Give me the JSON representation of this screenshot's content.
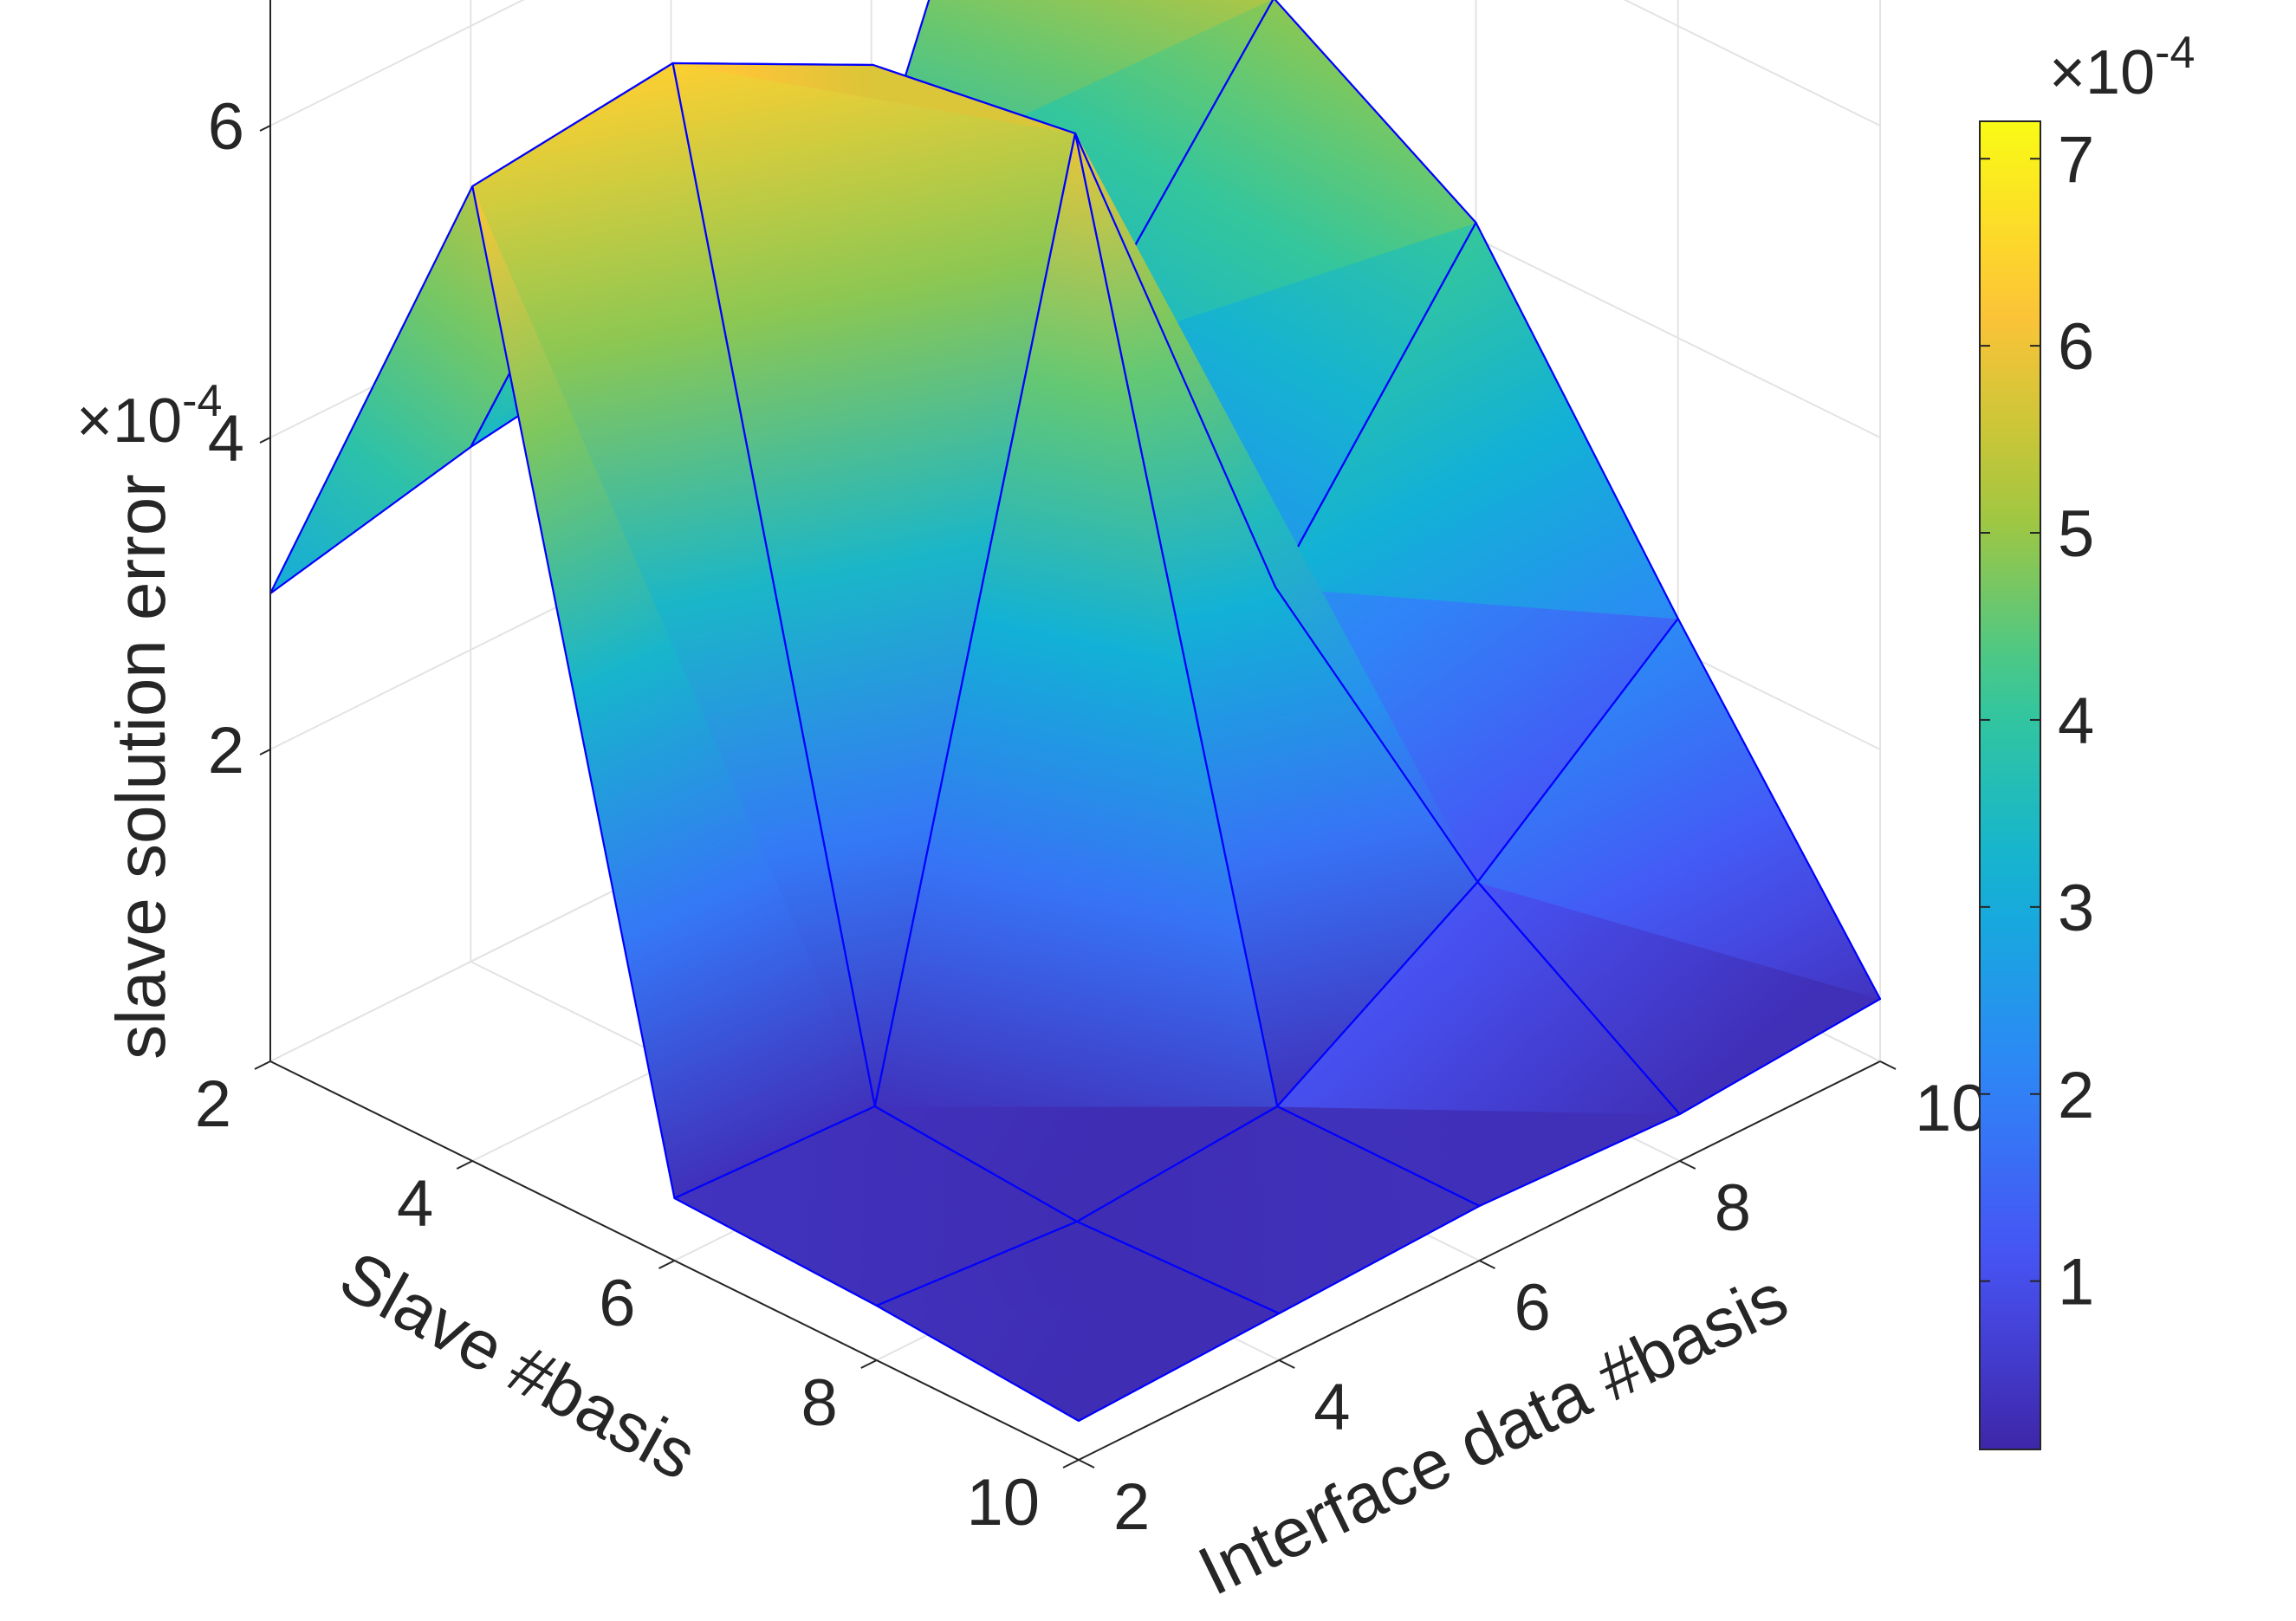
{
  "chart_data": {
    "type": "surface",
    "xlabel": "Slave #basis",
    "ylabel": "Interface data #basis",
    "zlabel": "slave solution error",
    "x": [
      2,
      4,
      6,
      8,
      10
    ],
    "y": [
      2,
      4,
      6,
      8,
      10
    ],
    "x_ticks": [
      "2",
      "4",
      "6",
      "8",
      "10"
    ],
    "y_ticks": [
      "2",
      "4",
      "6",
      "8",
      "10"
    ],
    "z_ticks": [
      "2",
      "4",
      "6"
    ],
    "z_exponent": {
      "base": "×10",
      "power": "-4"
    },
    "zlim": [
      0,
      0.0008
    ],
    "mesh": [
      [
        0.0003,
        0.00033,
        0.00035,
        0.00037,
        0.00072
      ],
      [
        0.000625,
        0.00064,
        0.000575,
        0.000325,
        0.00049
      ],
      [
        4e-05,
        3.5e-05,
        0.000595,
        0.00024,
        0.00041
      ],
      [
        3.5e-05,
        2.5e-05,
        3.5e-05,
        0.000115,
        0.00022
      ],
      [
        2.5e-05,
        3e-05,
        3.5e-05,
        3e-05,
        4e-05
      ]
    ],
    "colorbar": {
      "ticks": [
        "1",
        "2",
        "3",
        "4",
        "5",
        "6",
        "7"
      ],
      "range": [
        1e-05,
        0.00072
      ],
      "exponent": {
        "base": "×10",
        "power": "-4"
      }
    },
    "grid": true,
    "colormap": "parula"
  }
}
